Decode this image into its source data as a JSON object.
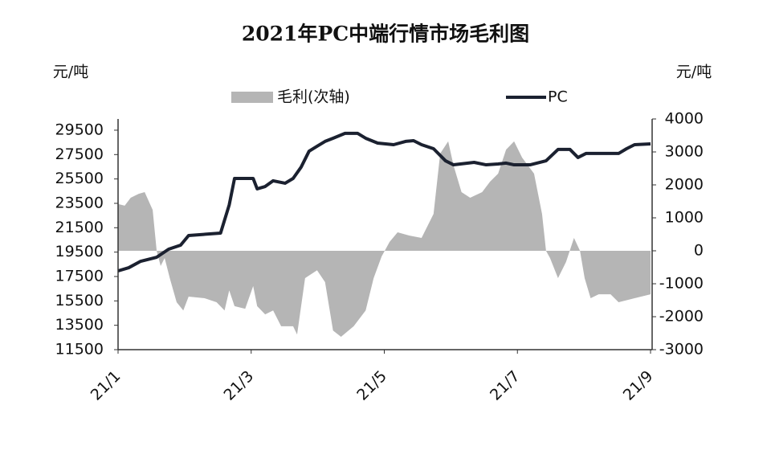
{
  "chart_data": {
    "type": "line",
    "title": "2021年PC中端行情市场毛利图",
    "y_label": "元/吨",
    "y2_label": "元/吨",
    "xlim": [
      1,
      9
    ],
    "xticks": [
      {
        "value": 1,
        "label": "21/1"
      },
      {
        "value": 3,
        "label": "21/3"
      },
      {
        "value": 5,
        "label": "21/5"
      },
      {
        "value": 7,
        "label": "21/7"
      },
      {
        "value": 9,
        "label": "21/9"
      }
    ],
    "ylim": [
      11500,
      30420
    ],
    "yticks": [
      11500,
      13500,
      15500,
      17500,
      19500,
      21500,
      23500,
      25500,
      27500,
      29500
    ],
    "y2lim": [
      -3000,
      4000
    ],
    "y2ticks": [
      -3000,
      -2000,
      -1000,
      0,
      1000,
      2000,
      3000,
      4000
    ],
    "legend": "top",
    "series": [
      {
        "name": "毛利(次轴)",
        "kind": "area",
        "axis": "y2",
        "color": "#b5b5b5",
        "x": [
          1.0,
          1.1,
          1.19,
          1.31,
          1.4,
          1.52,
          1.58,
          1.64,
          1.7,
          1.78,
          1.88,
          1.98,
          2.06,
          2.3,
          2.48,
          2.6,
          2.67,
          2.75,
          2.91,
          3.03,
          3.09,
          3.21,
          3.33,
          3.45,
          3.63,
          3.69,
          3.81,
          3.99,
          4.11,
          4.23,
          4.35,
          4.54,
          4.72,
          4.84,
          4.96,
          5.08,
          5.2,
          5.38,
          5.56,
          5.74,
          5.84,
          5.96,
          6.04,
          6.16,
          6.29,
          6.47,
          6.59,
          6.71,
          6.83,
          6.95,
          7.07,
          7.25,
          7.37,
          7.43,
          7.49,
          7.61,
          7.73,
          7.85,
          7.94,
          8.01,
          8.1,
          8.22,
          8.4,
          8.52,
          8.76,
          9.0
        ],
        "values": [
          1420,
          1370,
          1610,
          1730,
          1780,
          1240,
          0,
          -460,
          -220,
          -850,
          -1560,
          -1810,
          -1390,
          -1440,
          -1560,
          -1810,
          -1200,
          -1680,
          -1760,
          -1070,
          -1680,
          -1930,
          -1810,
          -2290,
          -2290,
          -2540,
          -830,
          -590,
          -950,
          -2420,
          -2610,
          -2290,
          -1810,
          -830,
          -170,
          270,
          560,
          460,
          390,
          1120,
          2950,
          3320,
          2590,
          1780,
          1610,
          1780,
          2100,
          2340,
          3070,
          3320,
          2830,
          2340,
          1120,
          0,
          -220,
          -830,
          -340,
          390,
          0,
          -830,
          -1440,
          -1320,
          -1320,
          -1560,
          -1440,
          -1320
        ]
      },
      {
        "name": "PC",
        "kind": "line",
        "color": "#1b2130",
        "x": [
          1.0,
          1.16,
          1.34,
          1.58,
          1.76,
          1.94,
          2.06,
          2.54,
          2.67,
          2.75,
          3.03,
          3.09,
          3.21,
          3.33,
          3.51,
          3.63,
          3.75,
          3.87,
          3.99,
          4.11,
          4.23,
          4.41,
          4.6,
          4.72,
          4.9,
          5.14,
          5.32,
          5.44,
          5.56,
          5.74,
          5.92,
          6.04,
          6.35,
          6.53,
          6.71,
          6.83,
          6.95,
          7.19,
          7.43,
          7.61,
          7.79,
          7.91,
          8.03,
          8.52,
          8.64,
          8.76,
          9.0
        ],
        "values": [
          17960,
          18220,
          18750,
          19080,
          19740,
          20070,
          20860,
          21060,
          23370,
          25540,
          25540,
          24690,
          24880,
          25350,
          25150,
          25540,
          26470,
          27780,
          28180,
          28580,
          28840,
          29240,
          29240,
          28840,
          28440,
          28310,
          28580,
          28640,
          28310,
          27980,
          26990,
          26660,
          26860,
          26660,
          26730,
          26800,
          26660,
          26660,
          26990,
          27920,
          27920,
          27260,
          27590,
          27590,
          27980,
          28310,
          28380
        ]
      }
    ]
  }
}
